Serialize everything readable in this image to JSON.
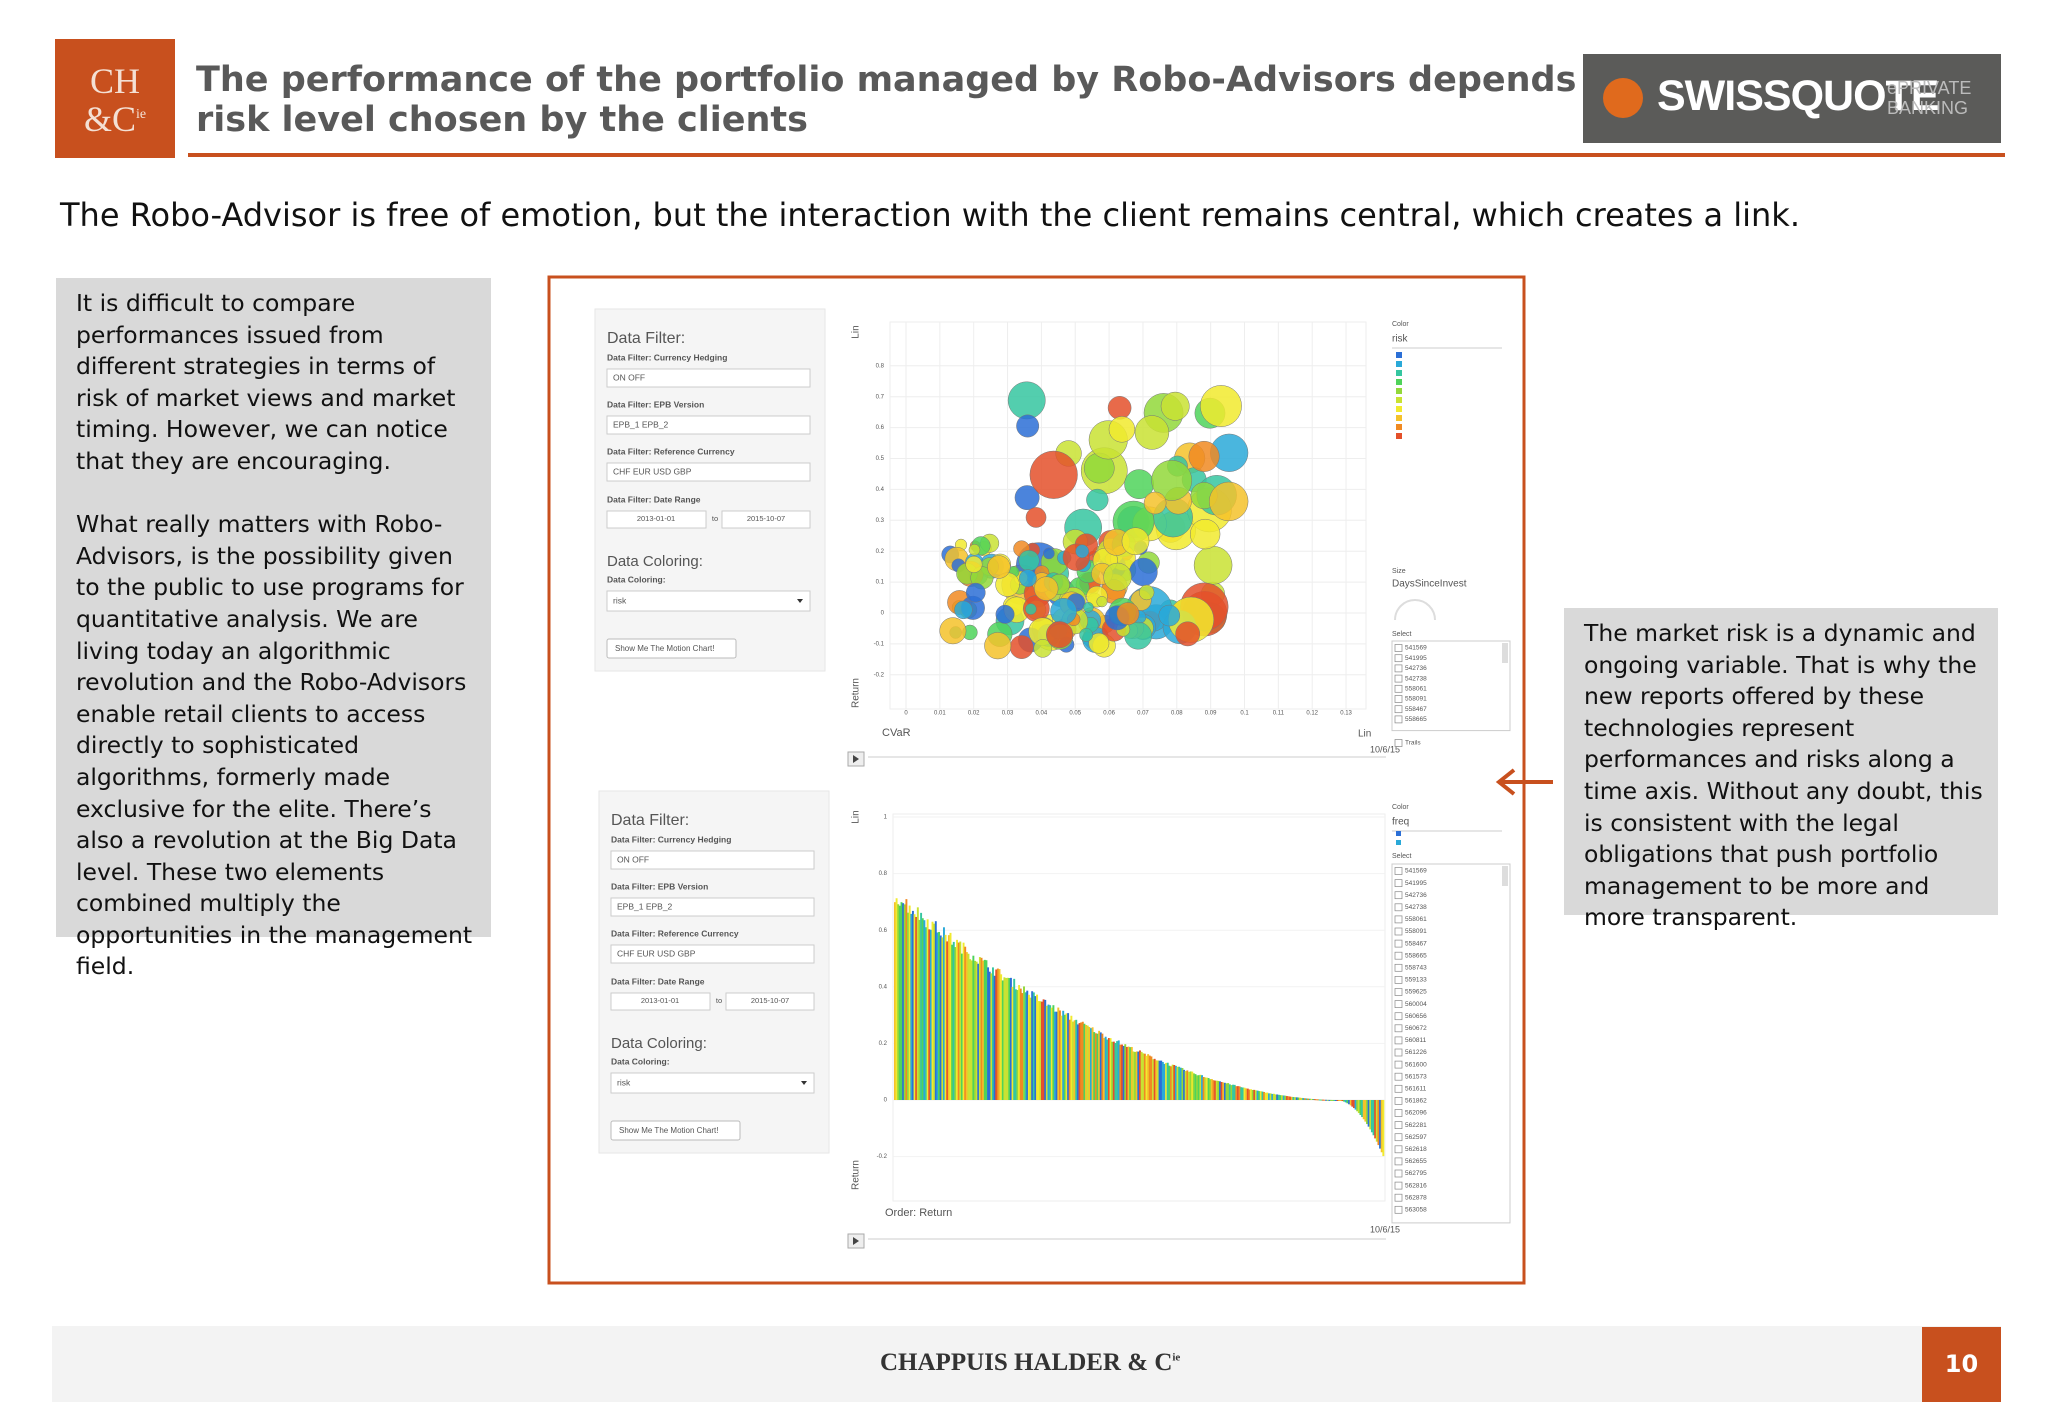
{
  "header": {
    "logo": {
      "line1": "CH",
      "line2": "&C",
      "sup": "ie"
    },
    "title_lines": [
      "The performance of the portfolio managed by Robo-Advisors depends on the",
      "risk level chosen by the clients"
    ],
    "brand": {
      "name": "SWISSQUOTE",
      "tag1": "ePRIVATE",
      "tag2": "BANKING"
    }
  },
  "subtitle": "The Robo-Advisor is free of emotion, but the interaction with the client remains central, which creates a link.",
  "left_note": {
    "paragraphs": [
      "It is difficult to compare performances issued from different strategies in terms of risk of market views and market timing. However, we can notice that they are encouraging.",
      "What really matters with Robo-Advisors, is the possibility given to the public to use programs for quantitative analysis. We are living today an algorithmic revolution and the Robo-Advisors enable retail clients to access directly to sophisticated algorithms, formerly made exclusive for the elite. There’s also a revolution at the Big Data level. These two elements combined multiply the opportunities in the management field."
    ]
  },
  "right_note": "The market risk is a dynamic and ongoing variable. That is why the new reports offered by these technologies represent performances and risks along a time axis. Without any doubt, this is consistent with the legal obligations that push portfolio management to be more and more transparent.",
  "dashboard": {
    "panels": [
      {
        "filter_title": "Data Filter:",
        "filters": [
          {
            "label": "Data Filter: Currency Hedging",
            "options": "ON  OFF"
          },
          {
            "label": "Data Filter: EPB Version",
            "options": "EPB_1  EPB_2"
          },
          {
            "label": "Data Filter: Reference Currency",
            "options": "CHF  EUR  USD  GBP"
          }
        ],
        "date_label": "Data Filter: Date Range",
        "date_from": "2013-01-01",
        "date_to_word": "to",
        "date_to": "2015-10-07",
        "coloring_title": "Data Coloring:",
        "coloring_label": "Data Coloring:",
        "coloring_value": "risk",
        "button": "Show Me The Motion Chart!",
        "y_scale": "Lin",
        "y_label": "Return",
        "x_label": "CVaR",
        "x_scale": "Lin",
        "date": "10/6/15",
        "color_title": "Color",
        "color_value": "risk",
        "size_title": "Size",
        "size_value": "DaysSinceInvest",
        "select_title": "Select",
        "select_items": [
          "541569",
          "541995",
          "542736",
          "542738",
          "558061",
          "558091",
          "558467",
          "558665"
        ],
        "trails": "Trails",
        "yticks": [
          0.8,
          0.7,
          0.6,
          0.5,
          0.4,
          0.3,
          0.2,
          0.1,
          0,
          -0.1,
          -0.2
        ],
        "xticks": [
          0,
          0.01,
          0.02,
          0.03,
          0.04,
          0.05,
          0.06,
          0.07,
          0.08,
          0.09,
          0.1,
          0.11,
          0.12,
          0.13
        ]
      },
      {
        "filter_title": "Data Filter:",
        "filters": [
          {
            "label": "Data Filter: Currency Hedging",
            "options": "ON  OFF"
          },
          {
            "label": "Data Filter: EPB Version",
            "options": "EPB_1  EPB_2"
          },
          {
            "label": "Data Filter: Reference Currency",
            "options": "CHF  EUR  USD  GBP"
          }
        ],
        "date_label": "Data Filter: Date Range",
        "date_from": "2013-01-01",
        "date_to_word": "to",
        "date_to": "2015-10-07",
        "coloring_title": "Data Coloring:",
        "coloring_label": "Data Coloring:",
        "coloring_value": "risk",
        "button": "Show Me The Motion Chart!",
        "y_scale": "Lin",
        "y_label": "Return",
        "x_label": "Order: Return",
        "date": "10/6/15",
        "color_title": "Color",
        "color_value": "freq",
        "select_title": "Select",
        "select_items": [
          "541569",
          "541995",
          "542736",
          "542738",
          "558061",
          "558091",
          "558467",
          "558665",
          "558743",
          "559133",
          "559625",
          "560004",
          "560656",
          "560672",
          "560811",
          "561226",
          "561600",
          "561573",
          "561611",
          "561862",
          "562096",
          "562281",
          "562597",
          "562618",
          "562655",
          "562795",
          "562816",
          "562878",
          "563058"
        ],
        "yticks": [
          1,
          0.8,
          0.6,
          0.4,
          0.2,
          0,
          -0.2
        ]
      }
    ]
  },
  "footer": {
    "company": "CHAPPUIS HALDER & C",
    "company_sup": "ie",
    "page": 10
  }
}
